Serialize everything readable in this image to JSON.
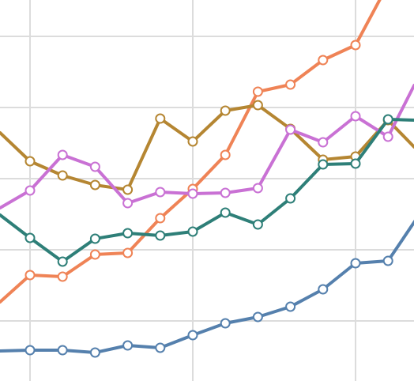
{
  "chart_data": {
    "type": "line",
    "grid": true,
    "x": [
      0,
      1,
      2,
      3,
      4,
      5,
      6,
      7,
      8,
      9,
      10,
      11,
      12,
      13
    ],
    "xlim": [
      -0.92,
      11.8
    ],
    "ylim": [
      0,
      482
    ],
    "series": [
      {
        "color": "#5580ad",
        "values": [
          [
            -0.92,
            444
          ],
          [
            0,
            443
          ],
          [
            1,
            443
          ],
          [
            2,
            446
          ],
          [
            3,
            437
          ],
          [
            4,
            440
          ],
          [
            5,
            424
          ],
          [
            6,
            409
          ],
          [
            7,
            401
          ],
          [
            8,
            388
          ],
          [
            9,
            366
          ],
          [
            10,
            333
          ],
          [
            11,
            330
          ],
          [
            12,
            269
          ],
          [
            12.8,
            245
          ]
        ]
      },
      {
        "color": "#ef8356",
        "values": [
          [
            -0.92,
            382
          ],
          [
            0,
            348
          ],
          [
            1,
            350
          ],
          [
            2,
            322
          ],
          [
            3,
            320
          ],
          [
            4,
            276
          ],
          [
            5,
            239
          ],
          [
            6,
            196
          ],
          [
            7,
            116
          ],
          [
            8,
            107
          ],
          [
            9,
            76
          ],
          [
            10,
            57
          ],
          [
            11,
            -20
          ]
        ]
      },
      {
        "color": "#b58632",
        "values": [
          [
            -0.92,
            168
          ],
          [
            0,
            204
          ],
          [
            1,
            222
          ],
          [
            2,
            234
          ],
          [
            3,
            240
          ],
          [
            4,
            150
          ],
          [
            5,
            179
          ],
          [
            6,
            140
          ],
          [
            7,
            133
          ],
          [
            8,
            163
          ],
          [
            9,
            202
          ],
          [
            10,
            198
          ],
          [
            11,
            152
          ],
          [
            11.8,
            186
          ]
        ]
      },
      {
        "color": "#c971d4",
        "values": [
          [
            -0.92,
            263
          ],
          [
            0,
            241
          ],
          [
            1,
            196
          ],
          [
            2,
            211
          ],
          [
            3,
            257
          ],
          [
            4,
            243
          ],
          [
            5,
            245
          ],
          [
            6,
            244
          ],
          [
            7,
            238
          ],
          [
            8,
            164
          ],
          [
            9,
            180
          ],
          [
            10,
            147
          ],
          [
            11,
            173
          ],
          [
            11.8,
            108
          ]
        ]
      },
      {
        "color": "#2e7f78",
        "values": [
          [
            -0.92,
            272
          ],
          [
            0,
            301
          ],
          [
            1,
            331
          ],
          [
            2,
            302
          ],
          [
            3,
            295
          ],
          [
            4,
            298
          ],
          [
            5,
            293
          ],
          [
            6,
            269
          ],
          [
            7,
            284
          ],
          [
            8,
            251
          ],
          [
            9,
            208
          ],
          [
            10,
            207
          ],
          [
            11,
            151
          ],
          [
            11.8,
            152
          ]
        ]
      }
    ]
  }
}
